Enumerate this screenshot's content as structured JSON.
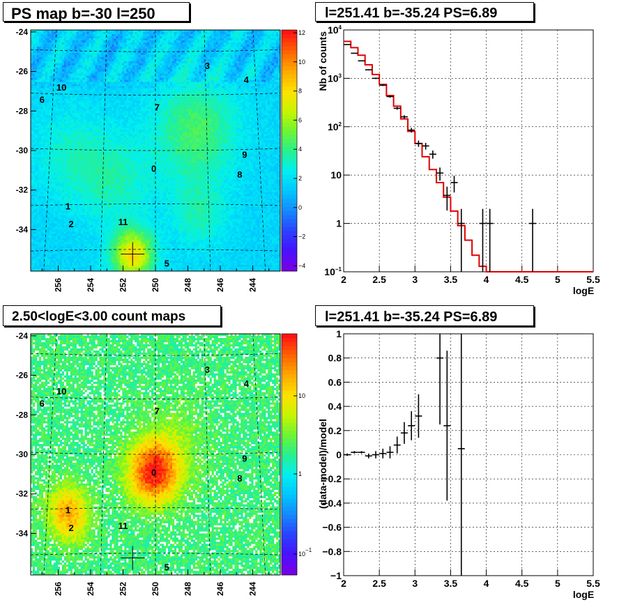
{
  "chart_data": [
    {
      "type": "heatmap",
      "title": "PS map b=-30 l=250",
      "x_ticks": [
        "256",
        "254",
        "252",
        "250",
        "248",
        "246",
        "244"
      ],
      "y_ticks": [
        "-24",
        "-26",
        "-28",
        "-30",
        "-32",
        "-34"
      ],
      "xlim": [
        257.7,
        242.3
      ],
      "ylim": [
        -36.1,
        -23.9
      ],
      "palette_ticks": [
        "12",
        "10",
        "8",
        "6",
        "4",
        "2",
        "0",
        "−2",
        "−4"
      ],
      "sources": [
        {
          "label": "0",
          "l": 250.1,
          "b": -30.9
        },
        {
          "label": "1",
          "l": 255.4,
          "b": -32.8
        },
        {
          "label": "2",
          "l": 255.2,
          "b": -33.7
        },
        {
          "label": "3",
          "l": 246.8,
          "b": -25.7
        },
        {
          "label": "4",
          "l": 244.4,
          "b": -26.4
        },
        {
          "label": "5",
          "l": 249.3,
          "b": -35.7
        },
        {
          "label": "6",
          "l": 257.0,
          "b": -27.4
        },
        {
          "label": "7",
          "l": 249.9,
          "b": -27.8
        },
        {
          "label": "8",
          "l": 244.8,
          "b": -31.2
        },
        {
          "label": "9",
          "l": 244.5,
          "b": -30.2
        },
        {
          "label": "10",
          "l": 255.8,
          "b": -26.8
        },
        {
          "label": "11",
          "l": 252.0,
          "b": -33.6
        }
      ],
      "marker": {
        "l": 251.41,
        "b": -35.24
      }
    },
    {
      "type": "line",
      "title": "l=251.41 b=-35.24 PS=6.89",
      "xlabel": "logE",
      "ylabel": "Nb of counts",
      "xlim": [
        2,
        5.5
      ],
      "ylim": [
        0.1,
        10000
      ],
      "yscale": "log",
      "x_ticks": [
        "2",
        "2.5",
        "3",
        "3.5",
        "4",
        "4.5",
        "5",
        "5.5"
      ],
      "y_ticks": [
        {
          "v": 0.1,
          "m": "10",
          "e": "−1"
        },
        {
          "v": 1,
          "m": "1",
          "e": ""
        },
        {
          "v": 10,
          "m": "10",
          "e": ""
        },
        {
          "v": 100,
          "m": "10",
          "e": "2"
        },
        {
          "v": 1000,
          "m": "10",
          "e": "3"
        },
        {
          "v": 10000,
          "m": "10",
          "e": "4"
        }
      ],
      "grid": true,
      "model_edges": [
        2.0,
        2.1,
        2.2,
        2.3,
        2.4,
        2.5,
        2.6,
        2.7,
        2.8,
        2.9,
        3.0,
        3.1,
        3.2,
        3.3,
        3.4,
        3.5,
        3.6,
        3.7,
        3.8,
        3.9,
        4.0,
        4.1,
        4.2,
        4.3,
        4.4,
        4.5,
        4.6,
        4.7,
        4.8,
        4.9,
        5.0,
        5.1,
        5.2,
        5.3,
        5.4,
        5.5
      ],
      "model_values": [
        5800,
        4300,
        3000,
        1900,
        1200,
        750,
        440,
        265,
        145,
        80,
        45,
        24,
        13,
        7,
        3.5,
        1.8,
        0.9,
        0.45,
        0.22,
        0.13,
        0.1,
        0.1,
        0.1,
        0.1,
        0.1,
        0.1,
        0.1,
        0.1,
        0.1,
        0.1,
        0.1,
        0.1,
        0.1,
        0.1,
        0.1
      ],
      "data_points": [
        {
          "x": 2.05,
          "y": 5000
        },
        {
          "x": 2.15,
          "y": 3300
        },
        {
          "x": 2.25,
          "y": 2300
        },
        {
          "x": 2.35,
          "y": 1500
        },
        {
          "x": 2.45,
          "y": 1000
        },
        {
          "x": 2.55,
          "y": 720
        },
        {
          "x": 2.65,
          "y": 420
        },
        {
          "x": 2.75,
          "y": 240
        },
        {
          "x": 2.85,
          "y": 160
        },
        {
          "x": 2.95,
          "y": 85
        },
        {
          "x": 3.05,
          "y": 45
        },
        {
          "x": 3.15,
          "y": 40
        },
        {
          "x": 3.25,
          "y": 27
        },
        {
          "x": 3.35,
          "y": 11
        },
        {
          "x": 3.45,
          "y": 3.8
        },
        {
          "x": 3.55,
          "y": 7
        },
        {
          "x": 3.65,
          "y": 1
        },
        {
          "x": 3.95,
          "y": 1
        },
        {
          "x": 4.05,
          "y": 1
        },
        {
          "x": 4.65,
          "y": 1
        }
      ]
    },
    {
      "type": "heatmap",
      "title": "2.50<logE<3.00 count maps",
      "x_ticks": [
        "256",
        "254",
        "252",
        "250",
        "248",
        "246",
        "244"
      ],
      "y_ticks": [
        "-24",
        "-26",
        "-28",
        "-30",
        "-32",
        "-34"
      ],
      "palette_ticks": [
        {
          "m": "10",
          "e": ""
        },
        {
          "m": "1",
          "e": ""
        },
        {
          "m": "10",
          "e": "−1"
        }
      ]
    },
    {
      "type": "scatter",
      "title": "l=251.41 b=-35.24 PS=6.89",
      "xlabel": "logE",
      "ylabel": "(data-model)/model",
      "xlim": [
        2,
        5.5
      ],
      "ylim": [
        -1,
        1
      ],
      "x_ticks": [
        "2",
        "2.5",
        "3",
        "3.5",
        "4",
        "4.5",
        "5",
        "5.5"
      ],
      "y_ticks": [
        "1",
        "0.8",
        "0.6",
        "0.4",
        "0.2",
        "0",
        "−0.2",
        "−0.4",
        "−0.6",
        "−0.8",
        "−1"
      ],
      "grid": true,
      "data_points": [
        {
          "x": 2.05,
          "y": 0.0,
          "e": 0.01
        },
        {
          "x": 2.15,
          "y": 0.02,
          "e": 0.01
        },
        {
          "x": 2.25,
          "y": 0.02,
          "e": 0.01
        },
        {
          "x": 2.35,
          "y": -0.01,
          "e": 0.02
        },
        {
          "x": 2.45,
          "y": 0.0,
          "e": 0.03
        },
        {
          "x": 2.55,
          "y": 0.01,
          "e": 0.04
        },
        {
          "x": 2.65,
          "y": 0.02,
          "e": 0.05
        },
        {
          "x": 2.75,
          "y": 0.08,
          "e": 0.07
        },
        {
          "x": 2.85,
          "y": 0.18,
          "e": 0.09
        },
        {
          "x": 2.95,
          "y": 0.24,
          "e": 0.12
        },
        {
          "x": 3.05,
          "y": 0.32,
          "e": 0.18
        },
        {
          "x": 3.35,
          "y": 0.8,
          "e": 0.55
        },
        {
          "x": 3.45,
          "y": 0.24,
          "e": 0.62
        },
        {
          "x": 3.65,
          "y": 0.05,
          "e": 1.2
        }
      ]
    }
  ]
}
